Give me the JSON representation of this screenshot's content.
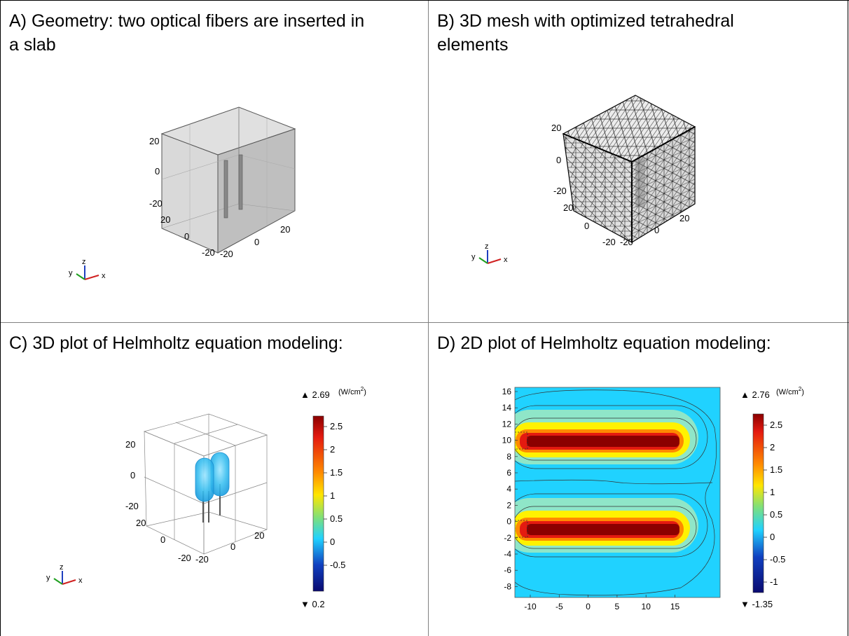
{
  "panels": {
    "a": {
      "title_line1": "A) Geometry: two optical fibers are inserted in",
      "title_line2": "a slab",
      "ticks": {
        "z_top": "20",
        "z_mid": "0",
        "z_bot": "-20",
        "y_back": "20",
        "y_mid": "0",
        "y_front": "-20",
        "x_front": "-20",
        "x_mid": "0",
        "x_back": "20"
      },
      "triad": {
        "x": "x",
        "y": "y",
        "z": "z"
      }
    },
    "b": {
      "title_line1": "B) 3D mesh with optimized tetrahedral",
      "title_line2": "elements",
      "ticks": {
        "z_top": "20",
        "z_mid": "0",
        "z_bot": "-20",
        "y_back": "20",
        "y_mid": "0",
        "y_front": "-20",
        "x_front": "-20",
        "x_mid": "0",
        "x_back": "20"
      },
      "triad": {
        "x": "x",
        "y": "y",
        "z": "z"
      }
    },
    "c": {
      "title": "C) 3D plot of Helmholtz equation modeling:",
      "ticks": {
        "z_top": "20",
        "z_mid": "0",
        "z_bot": "-20",
        "y_back": "20",
        "y_mid": "0",
        "y_front": "-20",
        "x_front": "-20",
        "x_mid": "0",
        "x_back": "20"
      },
      "triad": {
        "x": "x",
        "y": "y",
        "z": "z"
      },
      "colorbar": {
        "max_label": "▲ 2.69",
        "unit": "(W/cm",
        "unit_sup": "2",
        "unit_close": ")",
        "ticks": [
          "2.5",
          "2",
          "1.5",
          "1",
          "0.5",
          "0",
          "-0.5"
        ],
        "min_label": "▼ 0.2"
      }
    },
    "d": {
      "title": "D) 2D plot of Helmholtz equation modeling:",
      "y_ticks": [
        "16",
        "14",
        "12",
        "10",
        "8",
        "6",
        "4",
        "2",
        "0",
        "-2",
        "-4",
        "-6",
        "-8"
      ],
      "x_ticks": [
        "-10",
        "-5",
        "0",
        "5",
        "10",
        "15"
      ],
      "colorbar": {
        "max_label": "▲ 2.76",
        "unit": "(W/cm",
        "unit_sup": "2",
        "unit_close": ")",
        "ticks": [
          "2.5",
          "2",
          "1.5",
          "1",
          "0.5",
          "0",
          "-0.5",
          "-1"
        ],
        "min_label": "▼ -1.35"
      }
    }
  },
  "colors": {
    "jet_dark_red": "#8b0000",
    "jet_red": "#e41a10",
    "jet_yellow": "#ffe600",
    "jet_cyan": "#20d2ff",
    "jet_blue": "#1040c0",
    "jet_navy": "#0a0a70"
  }
}
